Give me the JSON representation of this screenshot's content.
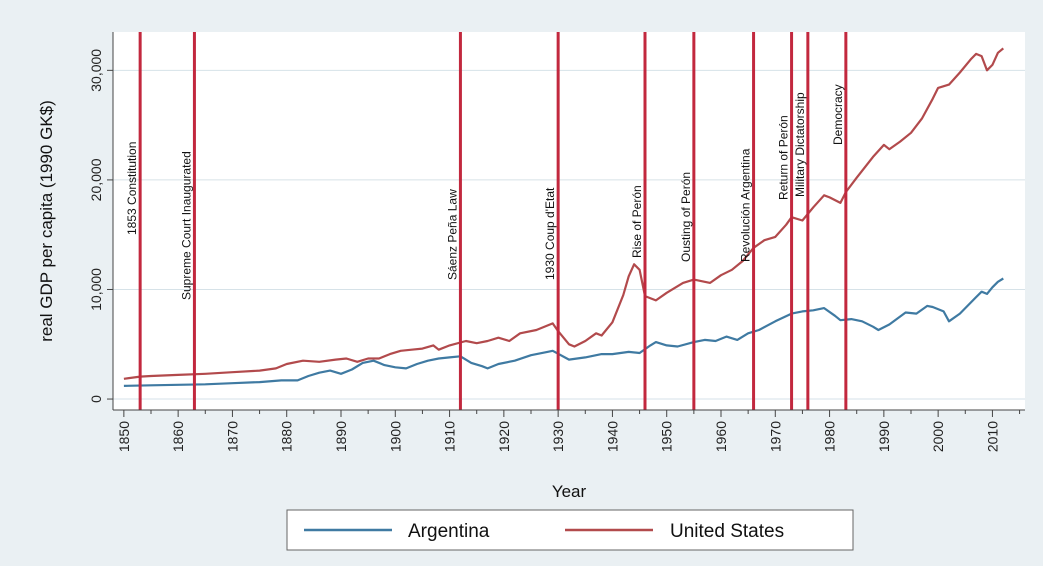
{
  "colors": {
    "argentina": "#3f7aa2",
    "united_states": "#b24a4c",
    "event_line": "#c2283e",
    "grid": "#d6e2e8",
    "background": "#eaf0f3",
    "plot_background": "#ffffff"
  },
  "chart_data": {
    "type": "line",
    "title": "",
    "xlabel": "Year",
    "ylabel": "real GDP per capita (1990 GK$)",
    "xlim": [
      1848,
      2016
    ],
    "ylim": [
      -1000,
      33500
    ],
    "grid": true,
    "legend_position": "bottom",
    "x_ticks": [
      "1850",
      "1860",
      "1870",
      "1880",
      "1890",
      "1900",
      "1910",
      "1920",
      "1930",
      "1940",
      "1950",
      "1960",
      "1970",
      "1980",
      "1990",
      "2000",
      "2010"
    ],
    "y_ticks": [
      "0",
      "10,000",
      "20,000",
      "30,000"
    ],
    "y_tick_values": [
      0,
      10000,
      20000,
      30000
    ],
    "series": [
      {
        "name": "Argentina",
        "points": [
          [
            1850,
            1200
          ],
          [
            1855,
            1250
          ],
          [
            1860,
            1300
          ],
          [
            1865,
            1350
          ],
          [
            1870,
            1450
          ],
          [
            1875,
            1550
          ],
          [
            1879,
            1700
          ],
          [
            1882,
            1700
          ],
          [
            1884,
            2100
          ],
          [
            1886,
            2400
          ],
          [
            1888,
            2600
          ],
          [
            1890,
            2300
          ],
          [
            1892,
            2700
          ],
          [
            1894,
            3300
          ],
          [
            1896,
            3500
          ],
          [
            1898,
            3100
          ],
          [
            1900,
            2900
          ],
          [
            1902,
            2800
          ],
          [
            1904,
            3200
          ],
          [
            1906,
            3500
          ],
          [
            1908,
            3700
          ],
          [
            1910,
            3800
          ],
          [
            1912,
            3900
          ],
          [
            1914,
            3300
          ],
          [
            1916,
            3000
          ],
          [
            1917,
            2800
          ],
          [
            1919,
            3200
          ],
          [
            1922,
            3500
          ],
          [
            1925,
            4000
          ],
          [
            1928,
            4300
          ],
          [
            1929,
            4400
          ],
          [
            1932,
            3600
          ],
          [
            1935,
            3800
          ],
          [
            1938,
            4100
          ],
          [
            1940,
            4100
          ],
          [
            1943,
            4300
          ],
          [
            1945,
            4200
          ],
          [
            1947,
            4900
          ],
          [
            1948,
            5200
          ],
          [
            1950,
            4900
          ],
          [
            1952,
            4800
          ],
          [
            1955,
            5200
          ],
          [
            1957,
            5400
          ],
          [
            1959,
            5300
          ],
          [
            1961,
            5700
          ],
          [
            1963,
            5400
          ],
          [
            1965,
            6000
          ],
          [
            1967,
            6300
          ],
          [
            1970,
            7100
          ],
          [
            1973,
            7800
          ],
          [
            1975,
            8000
          ],
          [
            1977,
            8100
          ],
          [
            1979,
            8300
          ],
          [
            1981,
            7600
          ],
          [
            1982,
            7200
          ],
          [
            1984,
            7300
          ],
          [
            1986,
            7100
          ],
          [
            1988,
            6600
          ],
          [
            1989,
            6300
          ],
          [
            1991,
            6800
          ],
          [
            1994,
            7900
          ],
          [
            1996,
            7800
          ],
          [
            1998,
            8500
          ],
          [
            1999,
            8400
          ],
          [
            2001,
            8000
          ],
          [
            2002,
            7100
          ],
          [
            2004,
            7800
          ],
          [
            2006,
            8800
          ],
          [
            2007,
            9300
          ],
          [
            2008,
            9800
          ],
          [
            2009,
            9600
          ],
          [
            2010,
            10200
          ],
          [
            2011,
            10700
          ],
          [
            2012,
            11000
          ]
        ]
      },
      {
        "name": "United States",
        "points": [
          [
            1850,
            1850
          ],
          [
            1853,
            2050
          ],
          [
            1855,
            2100
          ],
          [
            1860,
            2200
          ],
          [
            1865,
            2300
          ],
          [
            1870,
            2450
          ],
          [
            1875,
            2600
          ],
          [
            1878,
            2800
          ],
          [
            1880,
            3200
          ],
          [
            1883,
            3500
          ],
          [
            1886,
            3400
          ],
          [
            1889,
            3600
          ],
          [
            1891,
            3700
          ],
          [
            1893,
            3400
          ],
          [
            1895,
            3700
          ],
          [
            1897,
            3700
          ],
          [
            1899,
            4100
          ],
          [
            1901,
            4400
          ],
          [
            1903,
            4500
          ],
          [
            1905,
            4600
          ],
          [
            1907,
            4900
          ],
          [
            1908,
            4500
          ],
          [
            1910,
            4900
          ],
          [
            1913,
            5300
          ],
          [
            1915,
            5100
          ],
          [
            1917,
            5300
          ],
          [
            1919,
            5600
          ],
          [
            1921,
            5300
          ],
          [
            1923,
            6000
          ],
          [
            1926,
            6300
          ],
          [
            1929,
            6900
          ],
          [
            1930,
            6200
          ],
          [
            1932,
            5000
          ],
          [
            1933,
            4800
          ],
          [
            1935,
            5300
          ],
          [
            1937,
            6000
          ],
          [
            1938,
            5800
          ],
          [
            1940,
            7000
          ],
          [
            1942,
            9500
          ],
          [
            1943,
            11200
          ],
          [
            1944,
            12300
          ],
          [
            1945,
            11800
          ],
          [
            1946,
            9400
          ],
          [
            1948,
            9000
          ],
          [
            1950,
            9700
          ],
          [
            1953,
            10600
          ],
          [
            1955,
            10900
          ],
          [
            1958,
            10600
          ],
          [
            1960,
            11300
          ],
          [
            1962,
            11800
          ],
          [
            1964,
            12600
          ],
          [
            1966,
            13800
          ],
          [
            1968,
            14500
          ],
          [
            1970,
            14800
          ],
          [
            1972,
            15900
          ],
          [
            1973,
            16600
          ],
          [
            1975,
            16300
          ],
          [
            1977,
            17500
          ],
          [
            1979,
            18600
          ],
          [
            1980,
            18400
          ],
          [
            1982,
            17900
          ],
          [
            1983,
            18900
          ],
          [
            1985,
            20200
          ],
          [
            1988,
            22100
          ],
          [
            1990,
            23200
          ],
          [
            1991,
            22800
          ],
          [
            1993,
            23500
          ],
          [
            1995,
            24300
          ],
          [
            1997,
            25600
          ],
          [
            1999,
            27400
          ],
          [
            2000,
            28400
          ],
          [
            2002,
            28700
          ],
          [
            2004,
            29800
          ],
          [
            2006,
            31000
          ],
          [
            2007,
            31500
          ],
          [
            2008,
            31300
          ],
          [
            2009,
            30000
          ],
          [
            2010,
            30500
          ],
          [
            2011,
            31600
          ],
          [
            2012,
            32000
          ]
        ]
      }
    ],
    "events": [
      {
        "year": 1853,
        "label": "1853 Constitution"
      },
      {
        "year": 1863,
        "label": "Supreme Court Inaugurated"
      },
      {
        "year": 1912,
        "label": "Sáenz Peña Law"
      },
      {
        "year": 1930,
        "label": "1930 Coup d'Etat"
      },
      {
        "year": 1946,
        "label": "Rise of Perón"
      },
      {
        "year": 1955,
        "label": "Ousting of Perón"
      },
      {
        "year": 1966,
        "label": "Revolución Argentina"
      },
      {
        "year": 1973,
        "label": "Return of Perón"
      },
      {
        "year": 1976,
        "label": "Military Dictatorship"
      },
      {
        "year": 1983,
        "label": "Democracy"
      }
    ]
  }
}
